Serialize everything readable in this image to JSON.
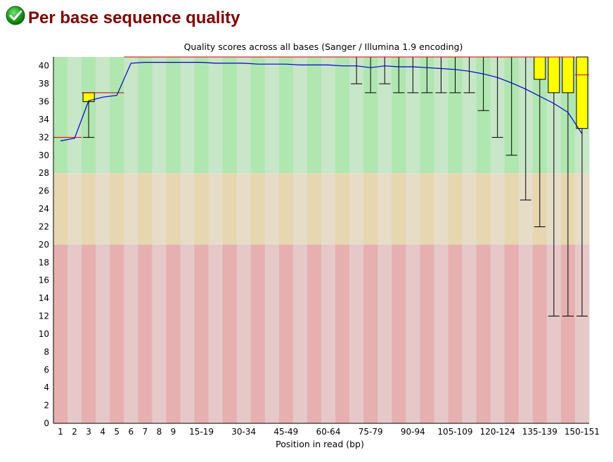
{
  "header": {
    "title": "Per base sequence quality",
    "status_icon": "check-icon",
    "status_color": "#1a9c1a"
  },
  "colors": {
    "title_color": "#800000",
    "zone_good": [
      "#b0e6b0",
      "#c8e6c8"
    ],
    "zone_warn": [
      "#e6d7b0",
      "#e6dcc8"
    ],
    "zone_bad": [
      "#e6b0b0",
      "#e6c8c8"
    ],
    "box_fill": "#ffff00",
    "median_color": "#cc0000",
    "mean_line": "#0000cc",
    "whisker_color": "#000000"
  },
  "chart_data": {
    "type": "box",
    "title": "Quality scores across all bases (Sanger / Illumina 1.9 encoding)",
    "xlabel": "Position in read (bp)",
    "ylabel": "",
    "ylim": [
      0,
      41
    ],
    "yticks": [
      0,
      2,
      4,
      6,
      8,
      10,
      12,
      14,
      16,
      18,
      20,
      22,
      24,
      26,
      28,
      30,
      32,
      34,
      36,
      38,
      40
    ],
    "zones": [
      {
        "name": "good",
        "from": 28,
        "to": 41
      },
      {
        "name": "warn",
        "from": 20,
        "to": 28
      },
      {
        "name": "bad",
        "from": 0,
        "to": 20
      }
    ],
    "categories": [
      "1",
      "2",
      "3",
      "4",
      "5",
      "6",
      "7",
      "8",
      "9",
      "10-14",
      "15-19",
      "20-24",
      "25-29",
      "30-34",
      "35-39",
      "40-44",
      "45-49",
      "50-54",
      "55-59",
      "60-64",
      "65-69",
      "70-74",
      "75-79",
      "80-84",
      "85-89",
      "90-94",
      "95-99",
      "100-104",
      "105-109",
      "110-114",
      "115-119",
      "120-124",
      "125-129",
      "130-134",
      "135-139",
      "140-144",
      "145-149",
      "150-151"
    ],
    "xtick_labels": [
      "1",
      "2",
      "3",
      "4",
      "5",
      "6",
      "7",
      "8",
      "9",
      "15-19",
      "30-34",
      "45-49",
      "60-64",
      "75-79",
      "90-94",
      "105-109",
      "120-124",
      "135-139",
      "150-151"
    ],
    "xtick_indices": [
      0,
      1,
      2,
      3,
      4,
      5,
      6,
      7,
      8,
      10,
      13,
      16,
      19,
      22,
      25,
      28,
      31,
      34,
      37
    ],
    "mean": [
      31.6,
      31.9,
      36.1,
      36.5,
      36.7,
      40.3,
      40.4,
      40.4,
      40.4,
      40.4,
      40.4,
      40.3,
      40.3,
      40.3,
      40.2,
      40.2,
      40.2,
      40.1,
      40.1,
      40.1,
      40.0,
      40.0,
      39.8,
      40.0,
      39.9,
      39.9,
      39.8,
      39.7,
      39.6,
      39.4,
      39.1,
      38.7,
      38.1,
      37.4,
      36.6,
      35.8,
      34.8,
      32.4
    ],
    "q1": [
      32,
      32,
      36,
      37,
      37,
      41,
      41,
      41,
      41,
      41,
      41,
      41,
      41,
      41,
      41,
      41,
      41,
      41,
      41,
      41,
      41,
      41,
      41,
      41,
      41,
      41,
      41,
      41,
      41,
      41,
      41,
      41,
      41,
      41,
      38.5,
      37,
      37,
      33
    ],
    "median": [
      32,
      32,
      37,
      37,
      37,
      41,
      41,
      41,
      41,
      41,
      41,
      41,
      41,
      41,
      41,
      41,
      41,
      41,
      41,
      41,
      41,
      41,
      41,
      41,
      41,
      41,
      41,
      41,
      41,
      41,
      41,
      41,
      41,
      41,
      41,
      41,
      41,
      39
    ],
    "q3": [
      32,
      32,
      37,
      37,
      37,
      41,
      41,
      41,
      41,
      41,
      41,
      41,
      41,
      41,
      41,
      41,
      41,
      41,
      41,
      41,
      41,
      41,
      41,
      41,
      41,
      41,
      41,
      41,
      41,
      41,
      41,
      41,
      41,
      41,
      41,
      41,
      41,
      41
    ],
    "lower_whisker": [
      32,
      32,
      32,
      37,
      37,
      41,
      41,
      41,
      41,
      41,
      41,
      41,
      41,
      41,
      41,
      41,
      41,
      41,
      41,
      41,
      41,
      38,
      37,
      38,
      37,
      37,
      37,
      37,
      37,
      37,
      35,
      32,
      30,
      25,
      22,
      12,
      12,
      12
    ],
    "upper_whisker": [
      32,
      32,
      37,
      37,
      37,
      41,
      41,
      41,
      41,
      41,
      41,
      41,
      41,
      41,
      41,
      41,
      41,
      41,
      41,
      41,
      41,
      41,
      41,
      41,
      41,
      41,
      41,
      41,
      41,
      41,
      41,
      41,
      41,
      41,
      41,
      41,
      41,
      41
    ]
  }
}
